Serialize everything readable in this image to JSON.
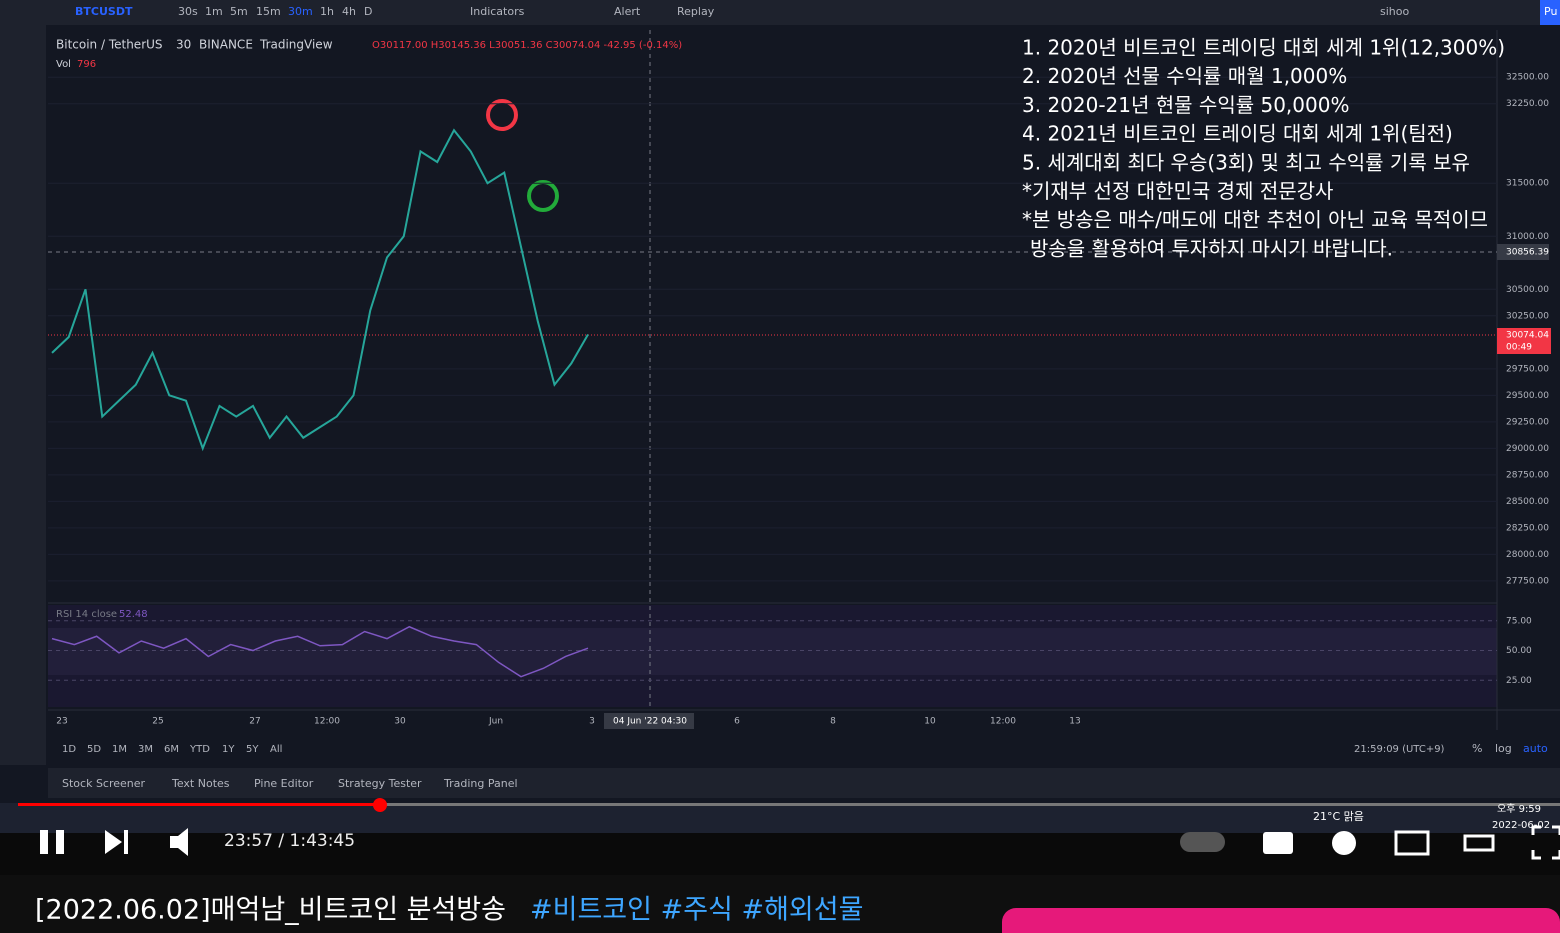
{
  "toolbar": {
    "symbol": "BTCUSDT",
    "intervals": [
      "30s",
      "1m",
      "5m",
      "15m",
      "30m",
      "1h",
      "4h",
      "D"
    ],
    "indicators": "Indicators",
    "alert": "Alert",
    "replay": "Replay",
    "user": "sihoo",
    "publish": "Pu"
  },
  "legend": {
    "name": "Bitcoin / TetherUS",
    "interval": "30",
    "exchange": "BINANCE",
    "source": "TradingView",
    "ohlc": "O30117.00 H30145.36 L30051.36 C30074.04 -42.95 (-0.14%)",
    "vol_label": "Vol",
    "vol_value": "796",
    "rsi_label": "RSI 14 close",
    "rsi_value": "52.48"
  },
  "overlay_text": [
    "1. 2020년 비트코인 트레이딩 대회 세계 1위(12,300%)",
    "2. 2020년 선물 수익률 매월 1,000%",
    "3. 2020-21년 현물 수익률 50,000%",
    "4. 2021년 비트코인 트레이딩 대회 세계 1위(팀전)",
    "5. 세계대회 최다 우승(3회) 및 최고 수익률 기록 보유",
    "*기재부 선정 대한민국 경제 전문강사",
    "*본 방송은 매수/매도에 대한 추천이 아닌 교육 목적이므",
    "방송을 활용하여 투자하지 마시기 바랍니다."
  ],
  "price_chart": {
    "closes": [
      29900,
      30050,
      30500,
      29300,
      29450,
      29600,
      29900,
      29500,
      29450,
      29000,
      29400,
      29300,
      29400,
      29100,
      29300,
      29100,
      29200,
      29300,
      29500,
      30300,
      30800,
      31000,
      31800,
      31700,
      32000,
      31800,
      31500,
      31600,
      30900,
      30200,
      29600,
      29800,
      30074
    ],
    "ylim": [
      27570,
      32945
    ],
    "yticks": [
      {
        "value": 27750,
        "label": "27750.00"
      },
      {
        "value": 28000,
        "label": "28000.00"
      },
      {
        "value": 28250,
        "label": "28250.00"
      },
      {
        "value": 28500,
        "label": "28500.00"
      },
      {
        "value": 28750,
        "label": "28750.00"
      },
      {
        "value": 29000,
        "label": "29000.00"
      },
      {
        "value": 29250,
        "label": "29250.00"
      },
      {
        "value": 29500,
        "label": "29500.00"
      },
      {
        "value": 29750,
        "label": "29750.00"
      },
      {
        "value": 30250,
        "label": "30250.00"
      },
      {
        "value": 30500,
        "label": "30500.00"
      },
      {
        "value": 31000,
        "label": "31000.00"
      },
      {
        "value": 31500,
        "label": "31500.00"
      },
      {
        "value": 32250,
        "label": "32250.00"
      },
      {
        "value": 32500,
        "label": "32500.00"
      }
    ],
    "crosshair_label": "30856.39",
    "last_price": "30074.04",
    "countdown": "00:49"
  },
  "rsi_chart": {
    "values": [
      60,
      55,
      62,
      48,
      58,
      52,
      60,
      45,
      55,
      50,
      58,
      62,
      54,
      55,
      66,
      60,
      70,
      62,
      58,
      55,
      40,
      28,
      35,
      45,
      52
    ],
    "ylim": [
      2.5,
      88.3
    ],
    "yticks": [
      {
        "value": 75,
        "label": "75.00"
      },
      {
        "value": 50,
        "label": "50.00"
      },
      {
        "value": 25,
        "label": "25.00"
      }
    ]
  },
  "time_axis": [
    "23",
    "25",
    "27",
    "12:00",
    "30",
    "Jun",
    "3",
    "04 Jun '22  04:30",
    "6",
    "8",
    "10",
    "12:00",
    "13"
  ],
  "bottom_bar": {
    "ranges": [
      "1D",
      "5D",
      "1M",
      "3M",
      "6M",
      "YTD",
      "1Y",
      "5Y",
      "All"
    ],
    "clock": "21:59:09 (UTC+9)",
    "percent": "%",
    "log": "log",
    "auto": "auto"
  },
  "tabs": [
    "Stock Screener",
    "Text Notes",
    "Pine Editor",
    "Strategy Tester",
    "Trading Panel"
  ],
  "taskbar": {
    "weather": "21°C 맑음",
    "time": "오후 9:59",
    "date": "2022-06-02"
  },
  "player": {
    "time": "23:57 / 1:43:45"
  },
  "video_title": {
    "text": "[2022.06.02]매억남_비트코인 분석방송",
    "tags": "#비트코인 #주식 #해외선물"
  }
}
